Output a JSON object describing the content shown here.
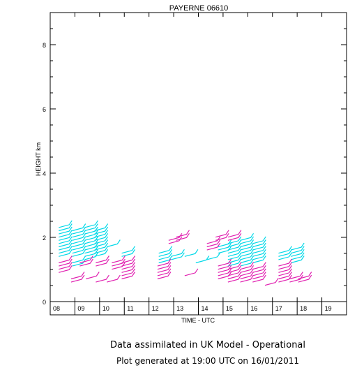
{
  "chart_data": {
    "type": "scatter",
    "title": "PAYERNE 06610",
    "xlabel": "TIME - UTC",
    "ylabel": "HEIGHT km",
    "xlim": [
      8,
      20
    ],
    "ylim": [
      0,
      9
    ],
    "x_ticks": [
      "08",
      "09",
      "10",
      "11",
      "12",
      "13",
      "14",
      "15",
      "16",
      "17",
      "18",
      "19"
    ],
    "y_ticks": [
      "0",
      "2",
      "4",
      "6",
      "8"
    ],
    "series": [
      {
        "color": "#00d8e8",
        "barbs": [
          {
            "x": 8.6,
            "heights": [
              2.35,
              2.25,
              2.15,
              2.05,
              1.95,
              1.85,
              1.75,
              1.65,
              1.55,
              1.45
            ]
          },
          {
            "x": 9.15,
            "heights": [
              2.25,
              2.15,
              2.05,
              1.95,
              1.85,
              1.75,
              1.65,
              1.55,
              1.45,
              1.25,
              1.15
            ]
          },
          {
            "x": 9.65,
            "heights": [
              2.35,
              2.25,
              2.15,
              2.05,
              1.95,
              1.85,
              1.75,
              1.65,
              1.55,
              1.45,
              1.35
            ]
          },
          {
            "x": 10.05,
            "heights": [
              2.25,
              2.15,
              2.05,
              1.95,
              1.85,
              1.75,
              1.65,
              1.55,
              1.45
            ]
          },
          {
            "x": 10.55,
            "heights": [
              1.75
            ]
          },
          {
            "x": 11.15,
            "heights": [
              1.55,
              1.45
            ]
          },
          {
            "x": 12.65,
            "heights": [
              1.55,
              1.45,
              1.35,
              1.25
            ]
          },
          {
            "x": 13.15,
            "heights": [
              1.45,
              1.35
            ]
          },
          {
            "x": 13.7,
            "heights": [
              1.45
            ]
          },
          {
            "x": 14.15,
            "heights": [
              1.25
            ]
          },
          {
            "x": 14.6,
            "heights": [
              1.35
            ]
          },
          {
            "x": 15.05,
            "heights": [
              1.75,
              1.65,
              1.55
            ]
          },
          {
            "x": 15.45,
            "heights": [
              1.85,
              1.75,
              1.65,
              1.55,
              1.45,
              1.35,
              1.25,
              1.15
            ]
          },
          {
            "x": 15.95,
            "heights": [
              1.95,
              1.85,
              1.75,
              1.65,
              1.55,
              1.45,
              1.35,
              1.25,
              1.15
            ]
          },
          {
            "x": 16.45,
            "heights": [
              1.85,
              1.75,
              1.65,
              1.55,
              1.45,
              1.35,
              1.25
            ]
          },
          {
            "x": 17.5,
            "heights": [
              1.55,
              1.45,
              1.35
            ]
          },
          {
            "x": 18.0,
            "heights": [
              1.65,
              1.55,
              1.45,
              1.35,
              1.25
            ]
          }
        ]
      },
      {
        "color": "#e020b0",
        "barbs": [
          {
            "x": 8.6,
            "heights": [
              1.25,
              1.15,
              1.05,
              0.95
            ]
          },
          {
            "x": 9.1,
            "heights": [
              0.75,
              0.65
            ]
          },
          {
            "x": 9.45,
            "heights": [
              1.25,
              1.15
            ]
          },
          {
            "x": 9.7,
            "heights": [
              0.75
            ]
          },
          {
            "x": 10.1,
            "heights": [
              1.25,
              1.15,
              0.65
            ]
          },
          {
            "x": 10.55,
            "heights": [
              0.65
            ]
          },
          {
            "x": 10.75,
            "heights": [
              1.25,
              1.15,
              1.05
            ]
          },
          {
            "x": 11.15,
            "heights": [
              1.25,
              1.15,
              1.05,
              0.95,
              0.85,
              0.75
            ]
          },
          {
            "x": 12.6,
            "heights": [
              1.15,
              1.05,
              0.95,
              0.85,
              0.75
            ]
          },
          {
            "x": 13.05,
            "heights": [
              1.95,
              1.85
            ]
          },
          {
            "x": 13.35,
            "heights": [
              2.05,
              1.95
            ]
          },
          {
            "x": 13.7,
            "heights": [
              0.85
            ]
          },
          {
            "x": 14.6,
            "heights": [
              1.85,
              1.75,
              1.65
            ]
          },
          {
            "x": 14.95,
            "heights": [
              2.05,
              1.95
            ]
          },
          {
            "x": 15.05,
            "heights": [
              1.15,
              1.05,
              0.95,
              0.85,
              0.75
            ]
          },
          {
            "x": 15.45,
            "heights": [
              2.05,
              1.95,
              1.05,
              0.95,
              0.85,
              0.75,
              0.65
            ]
          },
          {
            "x": 15.95,
            "heights": [
              1.05,
              0.95,
              0.85,
              0.75,
              0.65
            ]
          },
          {
            "x": 16.45,
            "heights": [
              1.05,
              0.95,
              0.85,
              0.75,
              0.65
            ]
          },
          {
            "x": 16.95,
            "heights": [
              0.55
            ]
          },
          {
            "x": 17.5,
            "heights": [
              1.15,
              1.05,
              0.95,
              0.85,
              0.75,
              0.65
            ]
          },
          {
            "x": 17.95,
            "heights": [
              0.75,
              0.65
            ]
          },
          {
            "x": 18.3,
            "heights": [
              0.75,
              0.65
            ]
          }
        ]
      }
    ]
  },
  "footer": {
    "line1": "Data assimilated in UK Model - Operational",
    "line2": "Plot generated at 19:00 UTC on 16/01/2011"
  }
}
